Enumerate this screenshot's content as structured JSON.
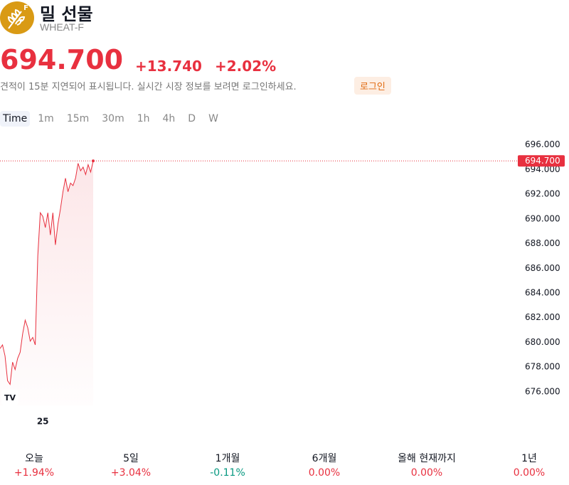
{
  "header": {
    "logo_badge": "F",
    "title": "밀 선물",
    "symbol": "WHEAT-F",
    "price": "694.700",
    "change": "+13.740",
    "change_percent": "+2.02%",
    "notice": "견적이 15분 지연되어 표시됩니다. 실시간 시장 정보를 보려면 로그인하세요.",
    "login": "로그인"
  },
  "intervals": [
    "Time",
    "1m",
    "15m",
    "30m",
    "1h",
    "4h",
    "D",
    "W"
  ],
  "chart_data": {
    "type": "line",
    "color": "#e8303f",
    "categories": [
      null,
      null,
      null,
      null,
      null,
      null,
      null,
      null,
      null,
      null,
      null,
      null,
      null,
      null,
      null,
      null,
      null,
      "25",
      null,
      null,
      null,
      null,
      null,
      null,
      null,
      null,
      null,
      null,
      null,
      null,
      null,
      null,
      null,
      null,
      null,
      null,
      null,
      null
    ],
    "values": [
      679.5,
      679.8,
      678.9,
      676.9,
      676.6,
      678.4,
      677.8,
      678.7,
      679.2,
      680.7,
      681.8,
      681.2,
      680.1,
      680.4,
      679.8,
      687.0,
      690.5,
      690.2,
      689.3,
      690.5,
      688.7,
      690.5,
      687.9,
      689.6,
      690.8,
      692.2,
      693.3,
      692.2,
      692.9,
      692.7,
      693.3,
      694.5,
      693.9,
      694.2,
      693.6,
      694.4,
      693.8,
      694.7
    ],
    "price_line": {
      "value": 694.7,
      "label": "694.700"
    },
    "ylim": [
      674.9,
      696.5
    ],
    "yticks": [
      {
        "value": 676,
        "label": "676.000"
      },
      {
        "value": 678,
        "label": "678.000"
      },
      {
        "value": 680,
        "label": "680.000"
      },
      {
        "value": 682,
        "label": "682.000"
      },
      {
        "value": 684,
        "label": "684.000"
      },
      {
        "value": 686,
        "label": "686.000"
      },
      {
        "value": 688,
        "label": "688.000"
      },
      {
        "value": 690,
        "label": "690.000"
      },
      {
        "value": 692,
        "label": "692.000"
      },
      {
        "value": 694,
        "label": "694.000"
      },
      {
        "value": 696,
        "label": "696.000"
      }
    ]
  },
  "performance": [
    {
      "period": "오늘",
      "change": "+1.94%"
    },
    {
      "period": "5일",
      "change": "+3.04%"
    },
    {
      "period": "1개월",
      "change": "-0.11%"
    },
    {
      "period": "6개월",
      "change": "0.00%"
    },
    {
      "period": "올해 현재까지",
      "change": "0.00%"
    },
    {
      "period": "1년",
      "change": "0.00%"
    }
  ]
}
